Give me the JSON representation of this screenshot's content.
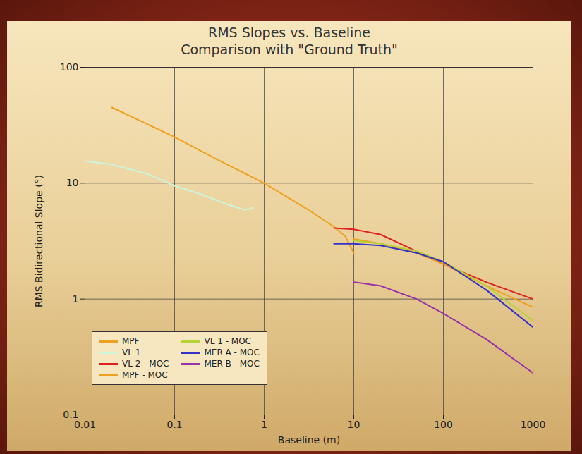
{
  "chart_data": {
    "type": "line",
    "title": "RMS Slopes vs. Baseline",
    "subtitle": "Comparison with \"Ground Truth\"",
    "x_label": "Baseline (m)",
    "y_label": "RMS Bidirectional Slope (°)",
    "log": true,
    "grid": true,
    "legend": "lower left",
    "xlim": [
      0.01,
      1000
    ],
    "xticks": [
      0.01,
      0.1,
      1,
      10,
      100,
      1000
    ],
    "ylim": [
      0.1,
      100
    ],
    "yticks": [
      0.1,
      1,
      10,
      100
    ],
    "series": [
      {
        "name": "MPF",
        "color": "#f0a020",
        "x": [
          0.02,
          0.1,
          0.3,
          1,
          3,
          6,
          8,
          10
        ],
        "values": [
          45,
          25,
          16,
          10,
          6,
          4.2,
          3.5,
          2.5
        ]
      },
      {
        "name": "VL 1",
        "color": "#ccf5dc",
        "x": [
          0.01,
          0.02,
          0.05,
          0.1,
          0.2,
          0.4,
          0.6,
          0.7,
          0.75
        ],
        "values": [
          15.5,
          14.5,
          12,
          9.5,
          8,
          6.5,
          5.9,
          6,
          6.2
        ]
      },
      {
        "name": "VL 2 - MOC",
        "color": "#e02020",
        "x": [
          6,
          10,
          20,
          40,
          100,
          300,
          1000
        ],
        "values": [
          4.1,
          4,
          3.6,
          2.8,
          2,
          1.4,
          1.0
        ]
      },
      {
        "name": "MPF - MOC",
        "color": "#f0a020",
        "x": [
          10,
          20,
          50,
          100,
          300,
          1000
        ],
        "values": [
          3.3,
          3,
          2.5,
          2,
          1.3,
          0.85
        ]
      },
      {
        "name": "VL 1 - MOC",
        "color": "#b5d334",
        "x": [
          10,
          20,
          50,
          100,
          300,
          1000
        ],
        "values": [
          3.2,
          3,
          2.6,
          2.1,
          1.3,
          0.65
        ]
      },
      {
        "name": "MER A - MOC",
        "color": "#3333cc",
        "x": [
          6,
          10,
          20,
          50,
          100,
          300,
          1000
        ],
        "values": [
          3.0,
          3.0,
          2.9,
          2.5,
          2.1,
          1.2,
          0.57
        ]
      },
      {
        "name": "MER B - MOC",
        "color": "#9933aa",
        "x": [
          10,
          20,
          50,
          100,
          300,
          1000
        ],
        "values": [
          1.4,
          1.3,
          1.0,
          0.75,
          0.45,
          0.23
        ]
      }
    ]
  }
}
